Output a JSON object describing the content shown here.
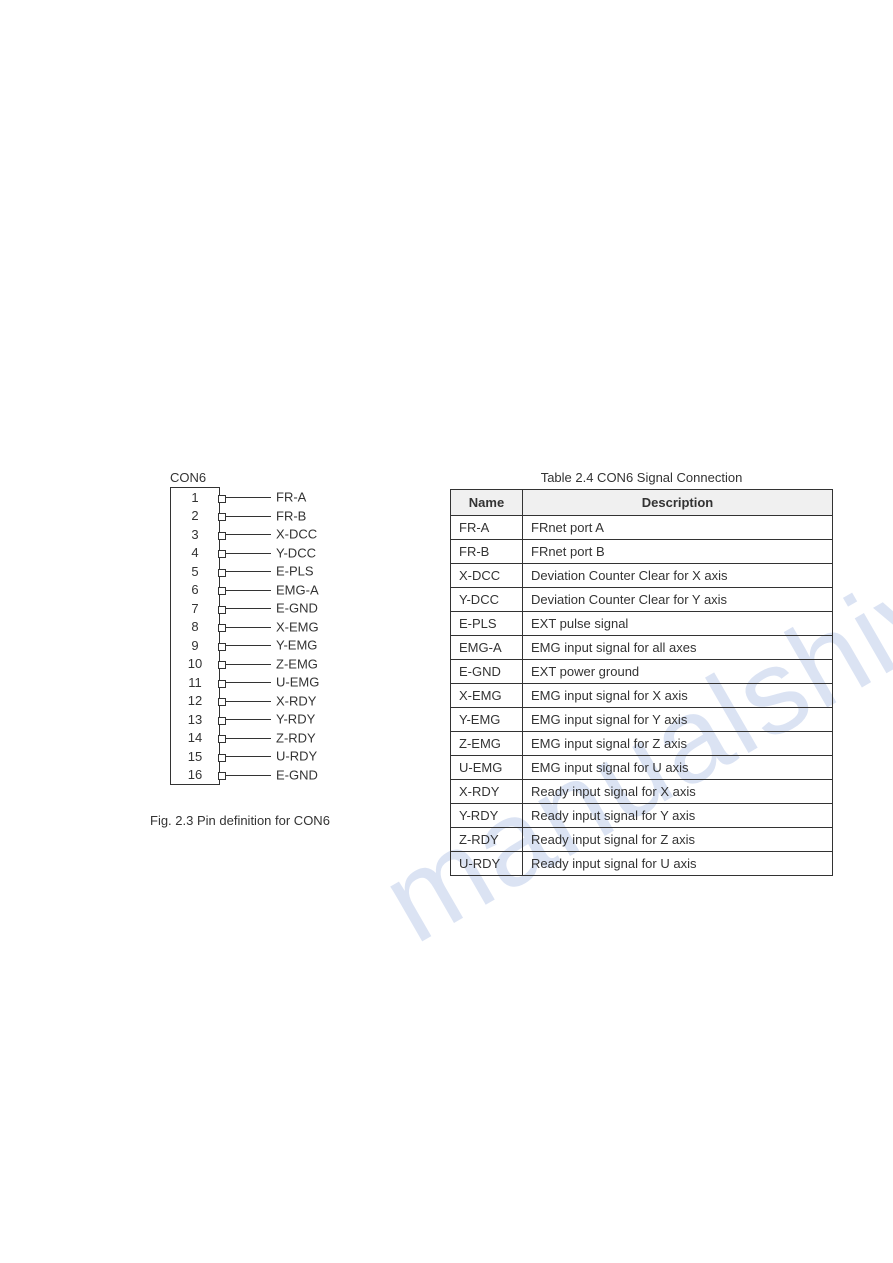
{
  "watermark": "manualshive.com",
  "connector": {
    "label": "CON6",
    "pins": [
      {
        "num": "1",
        "label": "FR-A"
      },
      {
        "num": "2",
        "label": "FR-B"
      },
      {
        "num": "3",
        "label": "X-DCC"
      },
      {
        "num": "4",
        "label": "Y-DCC"
      },
      {
        "num": "5",
        "label": "E-PLS"
      },
      {
        "num": "6",
        "label": "EMG-A"
      },
      {
        "num": "7",
        "label": "E-GND"
      },
      {
        "num": "8",
        "label": "X-EMG"
      },
      {
        "num": "9",
        "label": "Y-EMG"
      },
      {
        "num": "10",
        "label": "Z-EMG"
      },
      {
        "num": "11",
        "label": "U-EMG"
      },
      {
        "num": "12",
        "label": "X-RDY"
      },
      {
        "num": "13",
        "label": "Y-RDY"
      },
      {
        "num": "14",
        "label": "Z-RDY"
      },
      {
        "num": "15",
        "label": "U-RDY"
      },
      {
        "num": "16",
        "label": "E-GND"
      }
    ]
  },
  "fig_caption": "Fig. 2.3   Pin definition for CON6",
  "table": {
    "caption": "Table 2.4 CON6 Signal Connection",
    "header": {
      "col1": "Name",
      "col2": "Description"
    },
    "rows": [
      {
        "name": "FR-A",
        "desc": "FRnet port A"
      },
      {
        "name": "FR-B",
        "desc": "FRnet port B"
      },
      {
        "name": "X-DCC",
        "desc": "Deviation Counter Clear for X axis"
      },
      {
        "name": "Y-DCC",
        "desc": "Deviation Counter Clear for Y axis"
      },
      {
        "name": "E-PLS",
        "desc": "EXT pulse signal"
      },
      {
        "name": "EMG-A",
        "desc": "EMG input signal for all axes"
      },
      {
        "name": "E-GND",
        "desc": "EXT power ground"
      },
      {
        "name": "X-EMG",
        "desc": "EMG input signal for X axis"
      },
      {
        "name": "Y-EMG",
        "desc": "EMG input signal for Y axis"
      },
      {
        "name": "Z-EMG",
        "desc": "EMG input signal for Z axis"
      },
      {
        "name": "U-EMG",
        "desc": "EMG input signal for U axis"
      },
      {
        "name": "X-RDY",
        "desc": "Ready input signal for X axis"
      },
      {
        "name": "Y-RDY",
        "desc": "Ready input signal for Y axis"
      },
      {
        "name": "Z-RDY",
        "desc": "Ready input signal for Z axis"
      },
      {
        "name": "U-RDY",
        "desc": "Ready input signal for U axis"
      }
    ]
  },
  "colors": {
    "watermark": "#b8c8e8",
    "text": "#333333",
    "border": "#333333",
    "header_bg": "#f0f0f0",
    "page_bg": "#ffffff"
  },
  "font_sizes": {
    "body": 13,
    "watermark": 120
  }
}
